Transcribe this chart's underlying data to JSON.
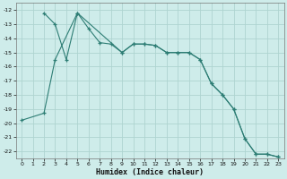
{
  "xlabel": "Humidex (Indice chaleur)",
  "background_color": "#ceecea",
  "grid_color": "#aed4d0",
  "line_color": "#2d7d74",
  "series1_x": [
    2,
    3,
    4,
    5,
    6,
    7,
    8,
    9,
    10,
    11,
    12,
    13,
    14,
    15,
    16,
    17,
    18,
    19,
    20,
    21,
    22,
    23
  ],
  "series1_y": [
    -12.2,
    -13.0,
    -15.5,
    -12.2,
    -13.3,
    -14.3,
    -14.4,
    -15.0,
    -14.4,
    -14.4,
    -14.5,
    -15.0,
    -15.0,
    -15.0,
    -15.5,
    -17.2,
    -18.0,
    -19.0,
    -21.1,
    -22.2,
    -22.2,
    -22.4
  ],
  "series2_x": [
    0,
    2,
    3,
    5,
    9,
    10,
    11,
    12,
    13,
    14,
    15,
    16,
    17,
    18,
    19,
    20,
    21,
    22,
    23
  ],
  "series2_y": [
    -19.8,
    -19.3,
    -15.5,
    -12.2,
    -15.0,
    -14.4,
    -14.4,
    -14.5,
    -15.0,
    -15.0,
    -15.0,
    -15.5,
    -17.2,
    -18.0,
    -19.0,
    -21.1,
    -22.2,
    -22.2,
    -22.4
  ],
  "ylim": [
    -22.5,
    -11.5
  ],
  "xlim": [
    -0.5,
    23.5
  ],
  "yticks": [
    -22,
    -21,
    -20,
    -19,
    -18,
    -17,
    -16,
    -15,
    -14,
    -13,
    -12
  ],
  "xticks": [
    0,
    1,
    2,
    3,
    4,
    5,
    6,
    7,
    8,
    9,
    10,
    11,
    12,
    13,
    14,
    15,
    16,
    17,
    18,
    19,
    20,
    21,
    22,
    23
  ]
}
